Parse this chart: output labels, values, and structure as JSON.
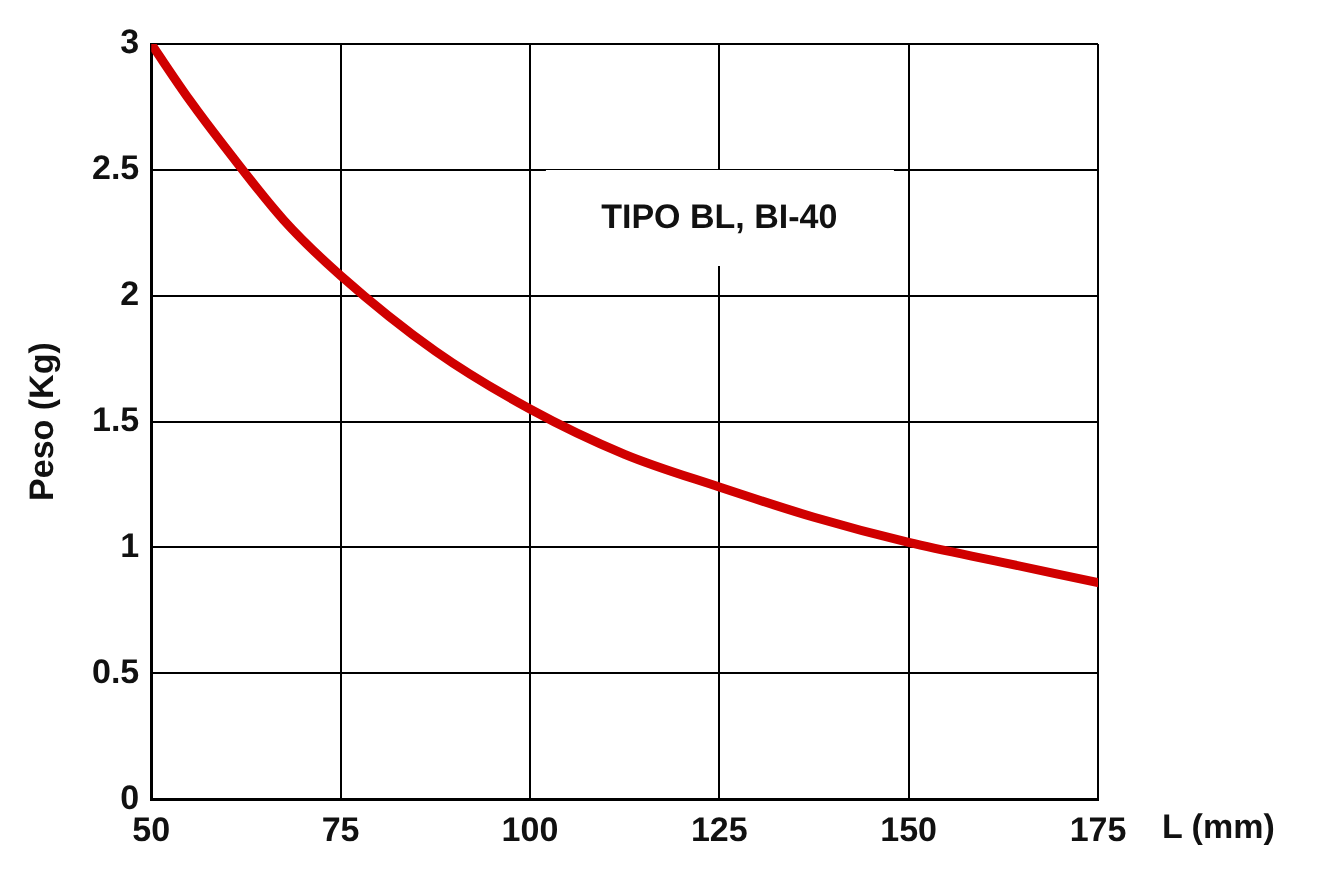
{
  "chart_data": {
    "type": "line",
    "xlabel": "L (mm)",
    "ylabel": "Peso (Kg)",
    "annotations": [
      "TIPO BL, BI-40"
    ],
    "x": [
      50,
      55,
      60,
      67.5,
      75,
      87.5,
      100,
      112.5,
      125,
      137.5,
      150,
      162.5,
      175
    ],
    "series": [
      {
        "color": "#d00000",
        "values": [
          3.0,
          2.78,
          2.58,
          2.3,
          2.08,
          1.78,
          1.55,
          1.37,
          1.24,
          1.12,
          1.02,
          0.94,
          0.86
        ]
      }
    ],
    "xlim": [
      50,
      175
    ],
    "xticks": [
      50,
      75,
      100,
      125,
      150,
      175
    ],
    "ylim": [
      0,
      3
    ],
    "yticks": [
      0,
      0.5,
      1,
      1.5,
      2,
      2.5,
      3
    ],
    "grid": true,
    "legend": false,
    "marker": "none",
    "line_style": "solid"
  }
}
